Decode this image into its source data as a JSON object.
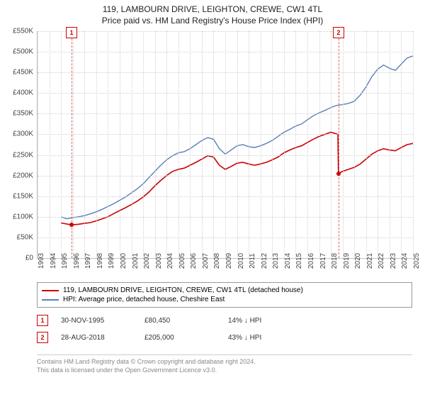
{
  "title": {
    "line1": "119, LAMBOURN DRIVE, LEIGHTON, CREWE, CW1 4TL",
    "line2": "Price paid vs. HM Land Registry's House Price Index (HPI)"
  },
  "chart": {
    "type": "line",
    "background_color": "#ffffff",
    "grid_color": "#d0d0d0",
    "axis_color": "#bbbbbb",
    "label_fontsize": 10,
    "label_color": "#444444",
    "x_years": [
      1993,
      1994,
      1995,
      1996,
      1997,
      1998,
      1999,
      2000,
      2001,
      2002,
      2003,
      2004,
      2005,
      2006,
      2007,
      2008,
      2009,
      2010,
      2011,
      2012,
      2013,
      2014,
      2015,
      2016,
      2017,
      2018,
      2019,
      2020,
      2021,
      2022,
      2023,
      2024,
      2025
    ],
    "xlim": [
      1993,
      2025
    ],
    "ylim": [
      0,
      550000
    ],
    "ytick_step": 50000,
    "y_ticks": [
      "£0",
      "£50K",
      "£100K",
      "£150K",
      "£200K",
      "£250K",
      "£300K",
      "£350K",
      "£400K",
      "£450K",
      "£500K",
      "£550K"
    ],
    "series": [
      {
        "name": "property",
        "label": "119, LAMBOURN DRIVE, LEIGHTON, CREWE, CW1 4TL (detached house)",
        "color": "#cc0000",
        "line_width": 1.6,
        "data": [
          [
            1995.0,
            85000
          ],
          [
            1995.9,
            80450
          ],
          [
            1996.5,
            82000
          ],
          [
            1997.0,
            84000
          ],
          [
            1997.5,
            86000
          ],
          [
            1998.0,
            90000
          ],
          [
            1998.5,
            95000
          ],
          [
            1999.0,
            100000
          ],
          [
            1999.5,
            108000
          ],
          [
            2000.0,
            115000
          ],
          [
            2000.5,
            122000
          ],
          [
            2001.0,
            130000
          ],
          [
            2001.5,
            138000
          ],
          [
            2002.0,
            148000
          ],
          [
            2002.5,
            160000
          ],
          [
            2003.0,
            175000
          ],
          [
            2003.5,
            188000
          ],
          [
            2004.0,
            200000
          ],
          [
            2004.5,
            210000
          ],
          [
            2005.0,
            215000
          ],
          [
            2005.5,
            218000
          ],
          [
            2006.0,
            225000
          ],
          [
            2006.5,
            232000
          ],
          [
            2007.0,
            240000
          ],
          [
            2007.5,
            248000
          ],
          [
            2008.0,
            245000
          ],
          [
            2008.5,
            225000
          ],
          [
            2009.0,
            215000
          ],
          [
            2009.5,
            222000
          ],
          [
            2010.0,
            230000
          ],
          [
            2010.5,
            232000
          ],
          [
            2011.0,
            228000
          ],
          [
            2011.5,
            225000
          ],
          [
            2012.0,
            228000
          ],
          [
            2012.5,
            232000
          ],
          [
            2013.0,
            238000
          ],
          [
            2013.5,
            245000
          ],
          [
            2014.0,
            255000
          ],
          [
            2014.5,
            262000
          ],
          [
            2015.0,
            268000
          ],
          [
            2015.5,
            272000
          ],
          [
            2016.0,
            280000
          ],
          [
            2016.5,
            288000
          ],
          [
            2017.0,
            295000
          ],
          [
            2017.5,
            300000
          ],
          [
            2018.0,
            305000
          ],
          [
            2018.6,
            300000
          ],
          [
            2018.65,
            205000
          ],
          [
            2019.0,
            210000
          ],
          [
            2019.5,
            215000
          ],
          [
            2020.0,
            220000
          ],
          [
            2020.5,
            228000
          ],
          [
            2021.0,
            240000
          ],
          [
            2021.5,
            252000
          ],
          [
            2022.0,
            260000
          ],
          [
            2022.5,
            265000
          ],
          [
            2023.0,
            262000
          ],
          [
            2023.5,
            260000
          ],
          [
            2024.0,
            268000
          ],
          [
            2024.5,
            275000
          ],
          [
            2025.0,
            278000
          ]
        ]
      },
      {
        "name": "hpi",
        "label": "HPI: Average price, detached house, Cheshire East",
        "color": "#5b7fb8",
        "line_width": 1.4,
        "data": [
          [
            1995.0,
            100000
          ],
          [
            1995.5,
            95000
          ],
          [
            1996.0,
            98000
          ],
          [
            1996.5,
            100000
          ],
          [
            1997.0,
            103000
          ],
          [
            1997.5,
            107000
          ],
          [
            1998.0,
            112000
          ],
          [
            1998.5,
            118000
          ],
          [
            1999.0,
            125000
          ],
          [
            1999.5,
            132000
          ],
          [
            2000.0,
            140000
          ],
          [
            2000.5,
            148000
          ],
          [
            2001.0,
            158000
          ],
          [
            2001.5,
            168000
          ],
          [
            2002.0,
            180000
          ],
          [
            2002.5,
            195000
          ],
          [
            2003.0,
            210000
          ],
          [
            2003.5,
            225000
          ],
          [
            2004.0,
            238000
          ],
          [
            2004.5,
            248000
          ],
          [
            2005.0,
            255000
          ],
          [
            2005.5,
            258000
          ],
          [
            2006.0,
            265000
          ],
          [
            2006.5,
            275000
          ],
          [
            2007.0,
            285000
          ],
          [
            2007.5,
            292000
          ],
          [
            2008.0,
            288000
          ],
          [
            2008.5,
            265000
          ],
          [
            2009.0,
            252000
          ],
          [
            2009.5,
            262000
          ],
          [
            2010.0,
            272000
          ],
          [
            2010.5,
            275000
          ],
          [
            2011.0,
            270000
          ],
          [
            2011.5,
            268000
          ],
          [
            2012.0,
            272000
          ],
          [
            2012.5,
            278000
          ],
          [
            2013.0,
            285000
          ],
          [
            2013.5,
            295000
          ],
          [
            2014.0,
            305000
          ],
          [
            2014.5,
            312000
          ],
          [
            2015.0,
            320000
          ],
          [
            2015.5,
            325000
          ],
          [
            2016.0,
            335000
          ],
          [
            2016.5,
            345000
          ],
          [
            2017.0,
            352000
          ],
          [
            2017.5,
            358000
          ],
          [
            2018.0,
            365000
          ],
          [
            2018.5,
            370000
          ],
          [
            2019.0,
            372000
          ],
          [
            2019.5,
            375000
          ],
          [
            2020.0,
            380000
          ],
          [
            2020.5,
            395000
          ],
          [
            2021.0,
            415000
          ],
          [
            2021.5,
            440000
          ],
          [
            2022.0,
            458000
          ],
          [
            2022.5,
            468000
          ],
          [
            2023.0,
            460000
          ],
          [
            2023.5,
            455000
          ],
          [
            2024.0,
            470000
          ],
          [
            2024.5,
            485000
          ],
          [
            2025.0,
            490000
          ]
        ]
      }
    ],
    "events": [
      {
        "n": "1",
        "year": 1995.9,
        "value": 80450,
        "date": "30-NOV-1995",
        "price": "£80,450",
        "delta": "14% ↓ HPI"
      },
      {
        "n": "2",
        "year": 2018.65,
        "value": 205000,
        "date": "28-AUG-2018",
        "price": "£205,000",
        "delta": "43% ↓ HPI"
      }
    ],
    "event_marker": {
      "border_color": "#cc0000",
      "text_color": "#cc0000",
      "bg": "#ffffff"
    },
    "event_dot_color": "#cc0000"
  },
  "footer": {
    "line1": "Contains HM Land Registry data © Crown copyright and database right 2024.",
    "line2": "This data is licensed under the Open Government Licence v3.0."
  }
}
